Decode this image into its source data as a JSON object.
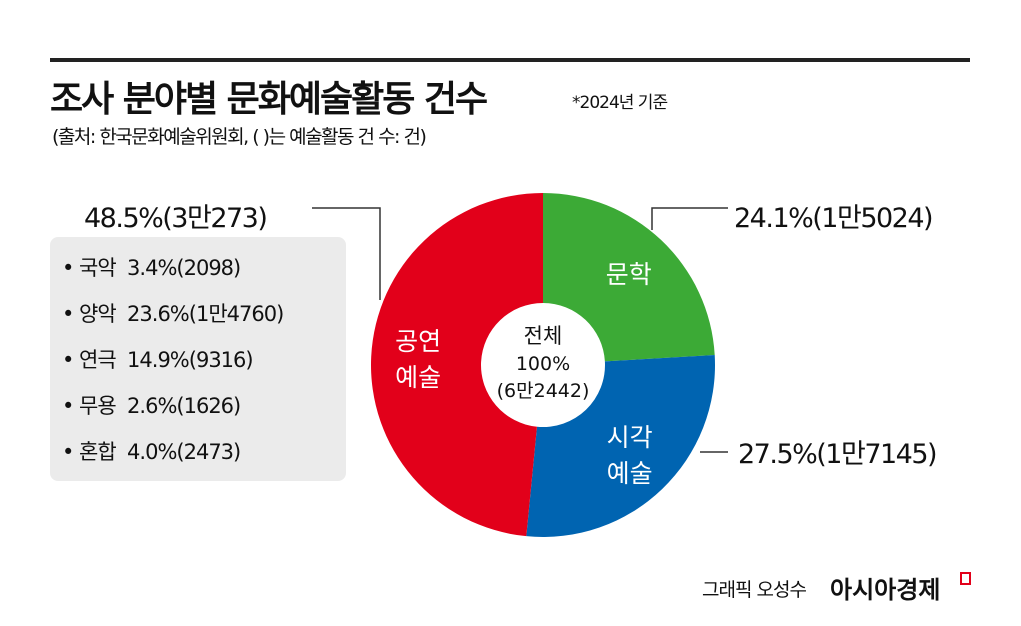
{
  "header": {
    "title": "조사 분야별 문화예술활동 건수",
    "note": "*2024년 기준",
    "source": "(출처: 한국문화예술위원회, ( )는 예술활동 건 수: 건)"
  },
  "chart_data": {
    "type": "pie",
    "title": "조사 분야별 문화예술활동 건수",
    "center_label": [
      "전체",
      "100%",
      "(6만2442)"
    ],
    "slices": [
      {
        "name_lines": [
          "문학"
        ],
        "percent": 24.1,
        "label": "24.1%(1만5024)",
        "color": "#3caa36"
      },
      {
        "name_lines": [
          "시각",
          "예술"
        ],
        "percent": 27.5,
        "label": "27.5%(1만7145)",
        "color": "#0064b1"
      },
      {
        "name_lines": [
          "공연",
          "예술"
        ],
        "percent": 48.5,
        "label": "48.5%(3만273)",
        "color": "#e2001a"
      }
    ],
    "breakdown": {
      "parent": "공연 예술",
      "items": [
        "• 국악  3.4%(2098)",
        "• 양악  23.6%(1만4760)",
        "• 연극  14.9%(9316)",
        "• 무용  2.6%(1626)",
        "• 혼합  4.0%(2473)"
      ]
    }
  },
  "footer": {
    "credit": "그래픽 오성수",
    "brand": "아시아경제"
  }
}
